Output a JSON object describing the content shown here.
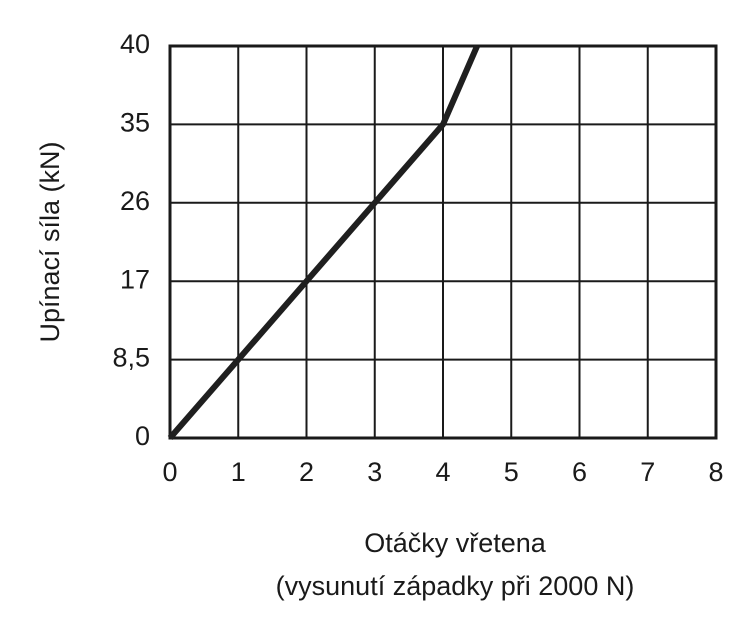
{
  "chart_data": {
    "type": "line",
    "ylabel": "Upínací síla (kN)",
    "xlabel": [
      "Otáčky vřetena",
      "(vysunutí západky při 2000 N)"
    ],
    "x": [
      0,
      1,
      2,
      3,
      4,
      4.5
    ],
    "series": [
      {
        "color": "#1f1f1f",
        "values": [
          0,
          8.5,
          17,
          26,
          35,
          40
        ]
      }
    ],
    "xlim": [
      0,
      8
    ],
    "xticks": [
      0,
      1,
      2,
      3,
      4,
      5,
      6,
      7,
      8
    ],
    "ylim": [
      0,
      40
    ],
    "yticks": [
      0,
      {
        "value": 8.5,
        "label": "8,5"
      },
      17,
      26,
      35,
      40
    ],
    "grid": true
  }
}
